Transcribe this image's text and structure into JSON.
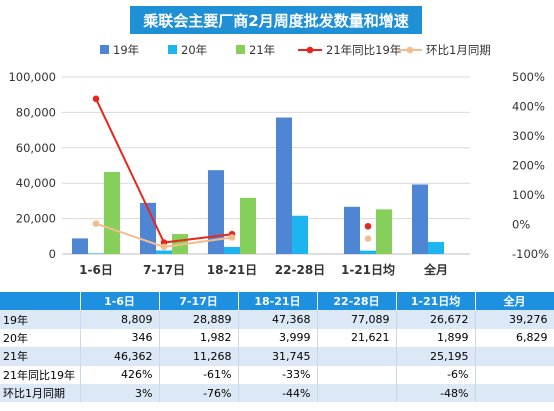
{
  "chart_data": {
    "type": "bar",
    "title": "乘联会主要厂商2月周度批发数量和增速",
    "categories": [
      "1-6日",
      "7-17日",
      "18-21日",
      "22-28日",
      "1-21日均",
      "全月"
    ],
    "y_left_ticks": [
      "0",
      "20,000",
      "40,000",
      "60,000",
      "80,000",
      "100,000"
    ],
    "y_right_ticks": [
      "-100%",
      "0%",
      "100%",
      "200%",
      "300%",
      "400%",
      "500%"
    ],
    "ylim": [
      0,
      100000
    ],
    "y2lim": [
      -100,
      500
    ],
    "grid": true,
    "legend_position": "top",
    "series": [
      {
        "name": "19年",
        "kind": "bar",
        "color": "#4f86d4",
        "values": [
          8809,
          28889,
          47368,
          77089,
          26672,
          39276
        ]
      },
      {
        "name": "20年",
        "kind": "bar",
        "color": "#1eb4ef",
        "values": [
          346,
          1982,
          3999,
          21621,
          1899,
          6829
        ]
      },
      {
        "name": "21年",
        "kind": "bar",
        "color": "#86cf5a",
        "values": [
          46362,
          11268,
          31745,
          null,
          25195,
          null
        ]
      },
      {
        "name": "21年同比19年",
        "kind": "line",
        "axis": "right",
        "color": "#e8261c",
        "values": [
          426,
          -61,
          -33,
          null,
          -6,
          null
        ]
      },
      {
        "name": "环比1月同期",
        "kind": "line",
        "axis": "right",
        "color": "#f5bd8f",
        "values": [
          3,
          -76,
          -44,
          null,
          -48,
          null
        ]
      }
    ]
  },
  "table": {
    "header": [
      "",
      "1-6日",
      "7-17日",
      "18-21日",
      "22-28日",
      "1-21日均",
      "全月"
    ],
    "rows": [
      [
        "19年",
        "8,809",
        "28,889",
        "47,368",
        "77,089",
        "26,672",
        "39,276"
      ],
      [
        "20年",
        "346",
        "1,982",
        "3,999",
        "21,621",
        "1,899",
        "6,829"
      ],
      [
        "21年",
        "46,362",
        "11,268",
        "31,745",
        "",
        "25,195",
        ""
      ],
      [
        "21年同比19年",
        "426%",
        "-61%",
        "-33%",
        "",
        "-6%",
        ""
      ],
      [
        "环比1月同期",
        "3%",
        "-76%",
        "-44%",
        "",
        "-48%",
        ""
      ]
    ]
  }
}
